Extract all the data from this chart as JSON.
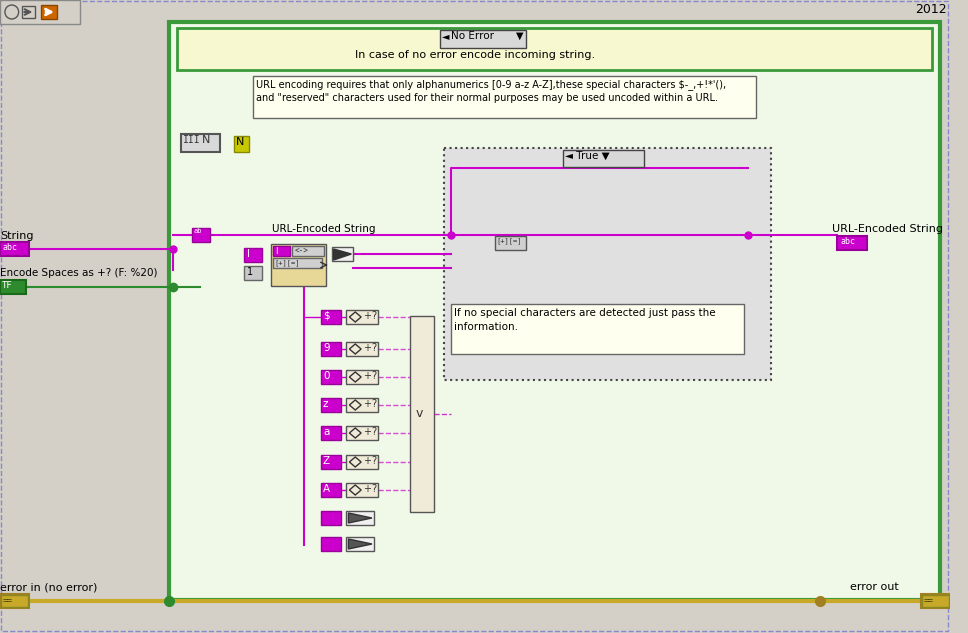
{
  "bg_color": "#d4d0c8",
  "fig_width": 9.68,
  "fig_height": 6.33,
  "title_year": "2012",
  "dashed_border_color": "#8888cc",
  "wire_color": "#cc00cc",
  "gold_wire": "#c8a828",
  "label_String": "String",
  "label_abc": "abc",
  "label_encode": "Encode Spaces as +? (F: %20)",
  "label_tf": "TF",
  "label_url_encoded": "URL-Encoded String",
  "label_url_encoded_right": "URL-Encoded String",
  "label_error_in": "error in (no error)",
  "label_error_out": "error out",
  "label_no_error": "No Error",
  "label_case_text": "In case of no error encode incoming string.",
  "label_url_note1": "URL encoding requires that only alphanumerics [0-9 a-z A-Z],these special characters $-_,+!*'(),",
  "label_url_note2": "and \"reserved\" characters used for their normal purposes may be used uncoded within a URL.",
  "label_true": "True",
  "label_pass1": "If no special characters are detected just pass the",
  "label_pass2": "information.",
  "label_N": "N",
  "char_labels": [
    "$",
    "9",
    "0",
    "z",
    "a",
    "Z",
    "A"
  ]
}
